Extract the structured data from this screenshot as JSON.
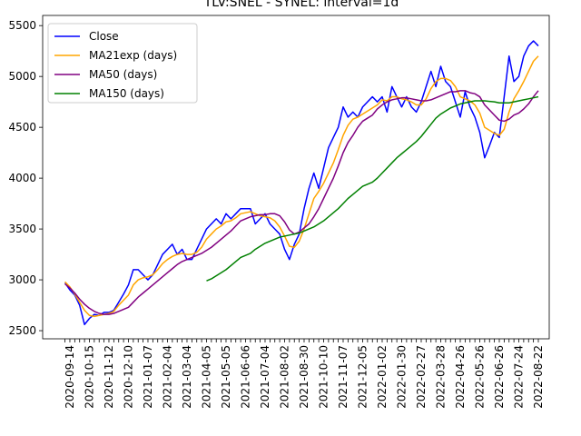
{
  "chart_data": {
    "type": "line",
    "title": "TLV:SNEL - SYNEL: interval=1d",
    "categories": [
      null,
      "2020-09-14",
      null,
      null,
      null,
      "2020-10-15",
      null,
      null,
      null,
      "2020-11-12",
      null,
      null,
      null,
      "2020-12-10",
      null,
      null,
      null,
      "2021-01-07",
      null,
      null,
      null,
      "2021-02-04",
      null,
      null,
      null,
      "2021-03-04",
      null,
      null,
      null,
      "2021-04-05",
      null,
      null,
      null,
      "2021-05-05",
      null,
      null,
      null,
      "2021-06-06",
      null,
      null,
      null,
      "2021-07-04",
      null,
      null,
      null,
      "2021-08-02",
      null,
      null,
      null,
      "2021-08-30",
      null,
      null,
      null,
      "2021-10-10",
      null,
      null,
      null,
      "2021-11-07",
      null,
      null,
      null,
      "2021-12-05",
      null,
      null,
      null,
      "2022-01-02",
      null,
      null,
      null,
      "2022-01-30",
      null,
      null,
      null,
      "2022-02-27",
      null,
      null,
      null,
      "2022-03-28",
      null,
      null,
      null,
      "2022-04-26",
      null,
      null,
      null,
      "2022-05-26",
      null,
      null,
      null,
      "2022-06-26",
      null,
      null,
      null,
      "2022-07-24",
      null,
      null,
      null,
      "2022-08-22"
    ],
    "series": [
      {
        "name": "Close",
        "color": "#0000ff",
        "values": [
          2970,
          2900,
          2850,
          2750,
          2560,
          2620,
          2660,
          2650,
          2680,
          2680,
          2700,
          2780,
          2860,
          2950,
          3100,
          3100,
          3050,
          3000,
          3050,
          3150,
          3250,
          3300,
          3350,
          3250,
          3300,
          3200,
          3200,
          3300,
          3400,
          3500,
          3550,
          3600,
          3550,
          3650,
          3600,
          3650,
          3700,
          3700,
          3700,
          3550,
          3600,
          3650,
          3550,
          3500,
          3450,
          3300,
          3200,
          3350,
          3450,
          3700,
          3900,
          4050,
          3900,
          4100,
          4300,
          4400,
          4500,
          4700,
          4600,
          4650,
          4600,
          4700,
          4750,
          4800,
          4750,
          4800,
          4650,
          4900,
          4800,
          4700,
          4800,
          4700,
          4650,
          4750,
          4900,
          5050,
          4900,
          5100,
          4950,
          4900,
          4750,
          4600,
          4850,
          4700,
          4600,
          4450,
          4200,
          4320,
          4450,
          4400,
          4800,
          5200,
          4950,
          5000,
          5200,
          5300,
          5350,
          5300
        ]
      },
      {
        "name": "MA21exp (days)",
        "color": "#ffa500",
        "values": [
          2980,
          2930,
          2860,
          2780,
          2700,
          2650,
          2640,
          2650,
          2660,
          2670,
          2690,
          2750,
          2800,
          2850,
          2950,
          3000,
          3020,
          3030,
          3050,
          3100,
          3160,
          3200,
          3230,
          3250,
          3260,
          3250,
          3250,
          3270,
          3320,
          3400,
          3450,
          3500,
          3530,
          3570,
          3580,
          3610,
          3650,
          3660,
          3670,
          3650,
          3630,
          3620,
          3610,
          3580,
          3520,
          3430,
          3330,
          3320,
          3380,
          3500,
          3650,
          3800,
          3870,
          3950,
          4050,
          4150,
          4280,
          4420,
          4520,
          4580,
          4600,
          4630,
          4660,
          4690,
          4720,
          4770,
          4760,
          4800,
          4800,
          4780,
          4770,
          4750,
          4720,
          4720,
          4780,
          4880,
          4950,
          4980,
          4980,
          4960,
          4900,
          4800,
          4780,
          4760,
          4720,
          4640,
          4500,
          4470,
          4440,
          4420,
          4480,
          4650,
          4780,
          4860,
          4950,
          5050,
          5150,
          5200
        ]
      },
      {
        "name": "MA50 (days)",
        "color": "#800080",
        "values": [
          2960,
          2920,
          2870,
          2810,
          2760,
          2720,
          2690,
          2670,
          2660,
          2660,
          2670,
          2690,
          2710,
          2730,
          2780,
          2830,
          2870,
          2910,
          2950,
          2990,
          3030,
          3070,
          3110,
          3150,
          3180,
          3200,
          3220,
          3240,
          3260,
          3290,
          3320,
          3360,
          3400,
          3440,
          3480,
          3530,
          3580,
          3600,
          3620,
          3630,
          3640,
          3640,
          3650,
          3650,
          3630,
          3570,
          3490,
          3450,
          3470,
          3510,
          3550,
          3620,
          3700,
          3800,
          3900,
          4000,
          4120,
          4250,
          4350,
          4420,
          4500,
          4560,
          4590,
          4620,
          4680,
          4720,
          4750,
          4770,
          4780,
          4790,
          4790,
          4780,
          4770,
          4760,
          4760,
          4770,
          4790,
          4810,
          4830,
          4850,
          4850,
          4860,
          4860,
          4840,
          4830,
          4800,
          4720,
          4670,
          4620,
          4570,
          4560,
          4580,
          4620,
          4640,
          4680,
          4730,
          4800,
          4860
        ]
      },
      {
        "name": "MA150 (days)",
        "color": "#008000",
        "values": [
          null,
          null,
          null,
          null,
          null,
          null,
          null,
          null,
          null,
          null,
          null,
          null,
          null,
          null,
          null,
          null,
          null,
          null,
          null,
          null,
          null,
          null,
          null,
          null,
          null,
          null,
          null,
          null,
          null,
          2990,
          3010,
          3040,
          3070,
          3100,
          3140,
          3180,
          3220,
          3240,
          3260,
          3300,
          3330,
          3360,
          3380,
          3400,
          3420,
          3430,
          3440,
          3450,
          3460,
          3480,
          3500,
          3520,
          3550,
          3580,
          3620,
          3660,
          3700,
          3750,
          3800,
          3840,
          3880,
          3920,
          3940,
          3960,
          4000,
          4050,
          4100,
          4150,
          4200,
          4240,
          4280,
          4320,
          4360,
          4410,
          4470,
          4530,
          4590,
          4630,
          4660,
          4690,
          4710,
          4730,
          4740,
          4750,
          4760,
          4760,
          4760,
          4755,
          4750,
          4740,
          4740,
          4740,
          4750,
          4760,
          4770,
          4780,
          4790,
          4800
        ]
      }
    ],
    "ylim": [
      2420,
      5600
    ],
    "yticks": [
      2500,
      3000,
      3500,
      4000,
      4500,
      5000,
      5500
    ],
    "legend": "upper-left"
  }
}
